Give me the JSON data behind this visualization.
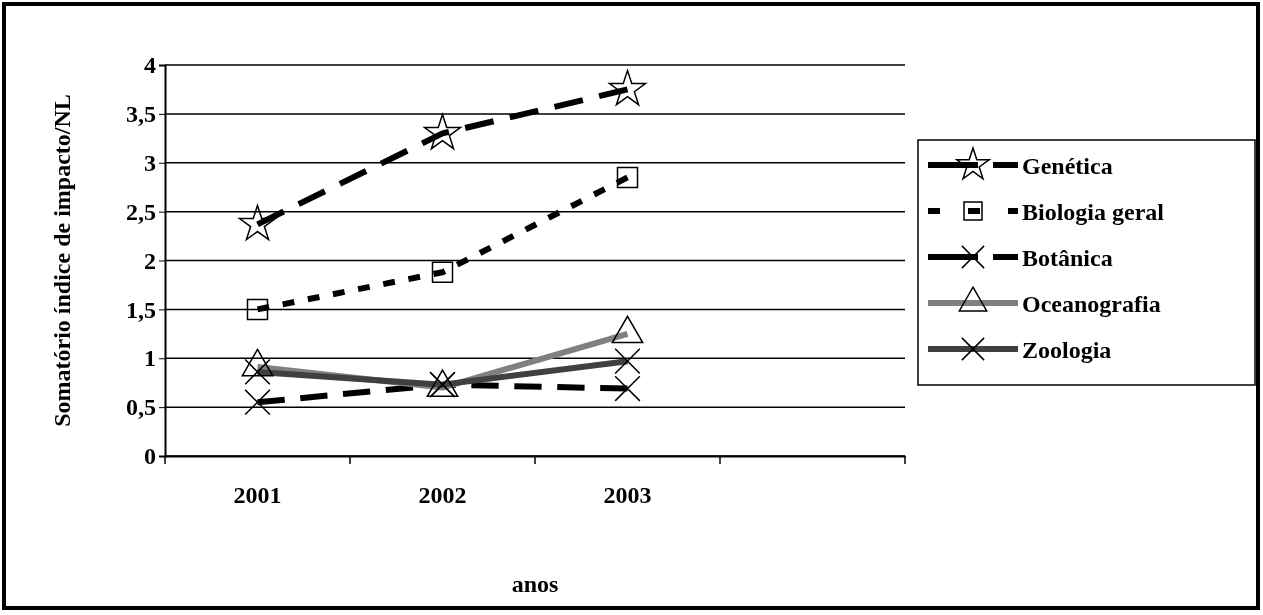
{
  "chart_data": {
    "type": "line",
    "xlabel": "anos",
    "ylabel": "Somatório índice de impacto/NL",
    "categories": [
      "2001",
      "2002",
      "2003",
      null
    ],
    "series": [
      {
        "name": "Genética",
        "color": "#000000",
        "values": [
          2.37,
          3.3,
          3.75,
          null
        ],
        "marker": "star",
        "line_style": "dashed"
      },
      {
        "name": "Biologia geral",
        "color": "#000000",
        "values": [
          1.5,
          1.88,
          2.85,
          null
        ],
        "marker": "square",
        "line_style": "dotted"
      },
      {
        "name": "Botânica",
        "color": "#000000",
        "values": [
          0.55,
          0.73,
          0.69,
          null
        ],
        "marker": "cross",
        "line_style": "dashed"
      },
      {
        "name": "Oceanografia",
        "color": "#808080",
        "values": [
          0.91,
          0.7,
          1.25,
          null
        ],
        "marker": "triangle",
        "line_style": "solid"
      },
      {
        "name": "Zoologia",
        "color": "#404040",
        "values": [
          0.86,
          0.73,
          0.97,
          null
        ],
        "marker": "cross",
        "line_style": "solid"
      }
    ],
    "ylim": [
      0,
      4
    ],
    "yticks": [
      0,
      {
        "value": 0.5,
        "label": "0,5"
      },
      1,
      {
        "value": 1.5,
        "label": "1,5"
      },
      2,
      {
        "value": 2.5,
        "label": "2,5"
      },
      3,
      {
        "value": 3.5,
        "label": "3,5"
      },
      4
    ],
    "grid": "y",
    "legend": "right"
  }
}
